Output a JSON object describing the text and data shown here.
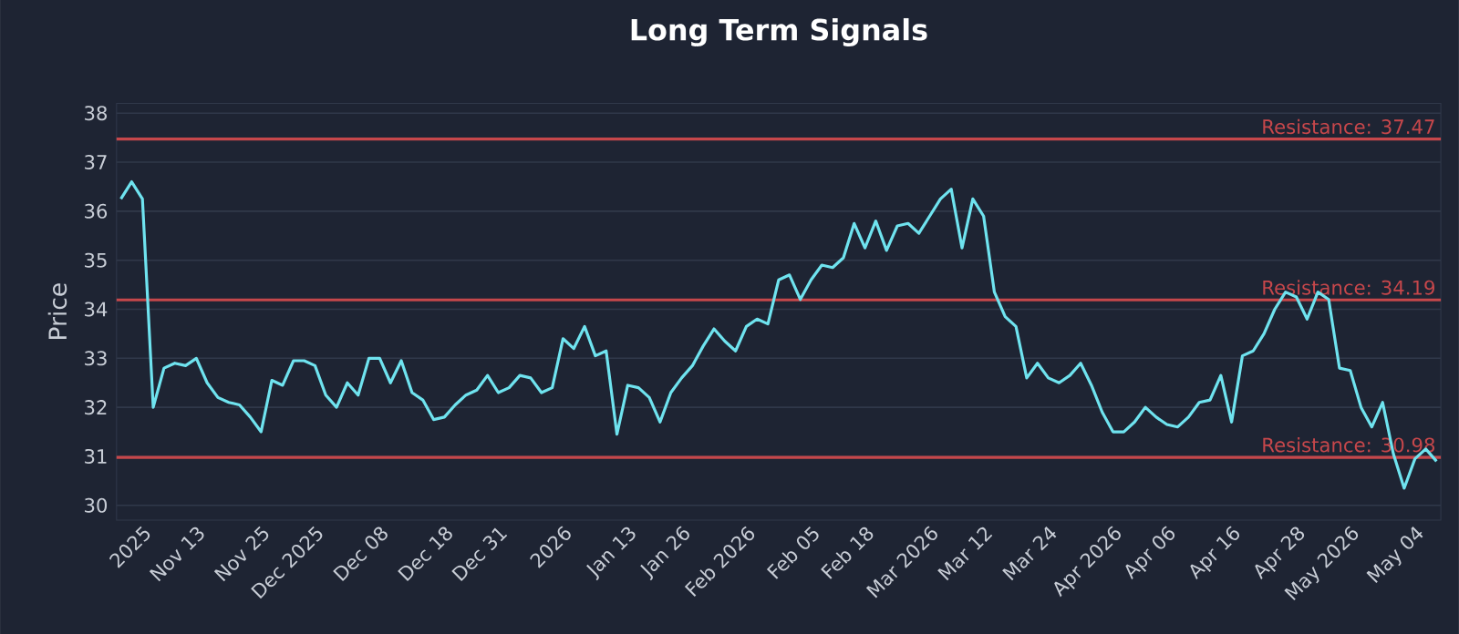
{
  "chart_data": {
    "type": "line",
    "title": "Long Term Signals",
    "ylabel": "Price",
    "categories": [
      null,
      null,
      "2025",
      null,
      null,
      null,
      null,
      "Nov 13",
      null,
      null,
      null,
      null,
      null,
      "Nov 25",
      null,
      null,
      null,
      null,
      "Dec 2025",
      null,
      null,
      null,
      null,
      null,
      "Dec 08",
      null,
      null,
      null,
      null,
      null,
      "Dec 18",
      null,
      null,
      null,
      null,
      "Dec 31",
      null,
      null,
      null,
      null,
      null,
      "2026",
      null,
      null,
      null,
      null,
      null,
      "Jan 13",
      null,
      null,
      null,
      null,
      "Jan 26",
      null,
      null,
      null,
      null,
      null,
      "Feb 2026",
      null,
      null,
      null,
      null,
      null,
      "Feb 05",
      null,
      null,
      null,
      null,
      "Feb 18",
      null,
      null,
      null,
      null,
      null,
      "Mar 2026",
      null,
      null,
      null,
      null,
      "Mar 12",
      null,
      null,
      null,
      null,
      null,
      "Mar 24",
      null,
      null,
      null,
      null,
      null,
      "Apr 2026",
      null,
      null,
      null,
      null,
      "Apr 06",
      null,
      null,
      null,
      null,
      null,
      "Apr 16",
      null,
      null,
      null,
      null,
      null,
      "Apr 28",
      null,
      null,
      null,
      null,
      "May 2026",
      null,
      null,
      null,
      null,
      null,
      "May 04",
      null,
      null
    ],
    "series": [
      {
        "color": "#6fe3ef",
        "values": [
          36.25,
          36.6,
          36.25,
          32.0,
          32.8,
          32.9,
          32.85,
          33.0,
          32.5,
          32.2,
          32.1,
          32.05,
          31.8,
          31.5,
          32.55,
          32.45,
          32.95,
          32.95,
          32.85,
          32.25,
          32.0,
          32.5,
          32.25,
          33.0,
          33.0,
          32.5,
          32.95,
          32.3,
          32.15,
          31.75,
          31.8,
          32.05,
          32.25,
          32.35,
          32.65,
          32.3,
          32.4,
          32.65,
          32.6,
          32.3,
          32.4,
          33.4,
          33.2,
          33.65,
          33.05,
          33.15,
          31.45,
          32.45,
          32.4,
          32.2,
          31.7,
          32.3,
          32.6,
          32.85,
          33.25,
          33.6,
          33.35,
          33.15,
          33.65,
          33.8,
          33.7,
          34.6,
          34.7,
          34.2,
          34.6,
          34.9,
          34.85,
          35.05,
          35.75,
          35.25,
          35.8,
          35.2,
          35.7,
          35.75,
          35.55,
          35.9,
          36.25,
          36.45,
          35.25,
          36.25,
          35.9,
          34.35,
          33.85,
          33.65,
          32.6,
          32.9,
          32.6,
          32.5,
          32.65,
          32.9,
          32.45,
          31.9,
          31.5,
          31.5,
          31.7,
          32.0,
          31.8,
          31.65,
          31.6,
          31.8,
          32.1,
          32.15,
          32.65,
          31.7,
          33.05,
          33.15,
          33.5,
          34.0,
          34.35,
          34.25,
          33.8,
          34.35,
          34.2,
          32.8,
          32.75,
          32.0,
          31.6,
          32.1,
          31.05,
          30.35,
          30.95,
          31.15,
          30.9
        ]
      }
    ],
    "ylim": [
      29.7,
      38.2
    ],
    "yticks": [
      30,
      31,
      32,
      33,
      34,
      35,
      36,
      37,
      38
    ],
    "grid": "y",
    "marker": "none",
    "line_style": "solid",
    "ref_lines": [
      {
        "axis": "y",
        "value": 37.47,
        "label": "Resistance: 37.47",
        "color": "#c6474b"
      },
      {
        "axis": "y",
        "value": 34.19,
        "label": "Resistance: 34.19",
        "color": "#c6474b"
      },
      {
        "axis": "y",
        "value": 30.98,
        "label": "Resistance: 30.98",
        "color": "#c6474b"
      }
    ]
  }
}
